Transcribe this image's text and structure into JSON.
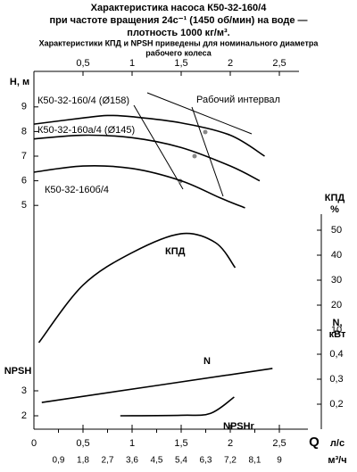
{
  "title": [
    "Характеристика насоса К50-32-160/4",
    "при частоте вращения 24с⁻¹ (1450 об/мин) на воде —",
    "плотность 1000 кг/м³."
  ],
  "subtitle": [
    "Характеристики КПД и NPSH приведены для номинального диаметра",
    "рабочего колеса"
  ],
  "chart_data": [
    {
      "type": "line",
      "y_label": "Н, м",
      "annotation": "Рабочий интервал",
      "xlim": [
        0,
        2.7
      ],
      "xticks": [
        {
          "value": 0.5,
          "label": "0,5"
        },
        1,
        {
          "value": 1.5,
          "label": "1,5"
        },
        2,
        {
          "value": 2.5,
          "label": "2,5"
        }
      ],
      "ylim": [
        4.5,
        9.5
      ],
      "yticks": [
        5,
        6,
        7,
        8,
        9
      ],
      "series": [
        {
          "name": "К50-32-160/4 (Ø158)",
          "color": "#000000",
          "x": [
            0,
            0.5,
            0.75,
            1.0,
            1.5,
            2.0,
            2.35
          ],
          "values": [
            8.3,
            8.55,
            8.65,
            8.6,
            8.35,
            7.85,
            7.0
          ]
        },
        {
          "name": "К50-32-160а/4 (Ø145)",
          "color": "#000000",
          "x": [
            0,
            0.5,
            1.0,
            1.5,
            2.0,
            2.3
          ],
          "values": [
            7.7,
            7.85,
            7.75,
            7.35,
            6.6,
            6.0
          ]
        },
        {
          "name": "К50-32-160б/4",
          "color": "#000000",
          "x": [
            0,
            0.5,
            1.0,
            1.5,
            1.9,
            2.15
          ],
          "values": [
            6.35,
            6.6,
            6.5,
            6.0,
            5.3,
            4.9
          ]
        }
      ]
    },
    {
      "type": "line",
      "y_label": [
        "КПД",
        "%"
      ],
      "xlim": [
        0,
        2.7
      ],
      "ylim": [
        5,
        55
      ],
      "yticks": [
        10,
        20,
        30,
        40,
        50
      ],
      "series": [
        {
          "name": "КПД",
          "color": "#000000",
          "x": [
            0.05,
            0.5,
            1.0,
            1.5,
            1.85,
            2.05
          ],
          "values": [
            5,
            28,
            41,
            48.6,
            45,
            35
          ]
        }
      ]
    },
    {
      "type": "line",
      "y_label": [
        "N,",
        "кВт"
      ],
      "xlim": [
        0,
        2.7
      ],
      "ylim": [
        0.15,
        0.45
      ],
      "yticks": [
        {
          "value": 0.2,
          "label": "0,2"
        },
        {
          "value": 0.3,
          "label": "0,3"
        },
        {
          "value": 0.4,
          "label": "0,4"
        }
      ],
      "series": [
        {
          "name": "N",
          "color": "#000000",
          "x": [
            0.08,
            2.43
          ],
          "values": [
            0.207,
            0.343
          ]
        }
      ]
    },
    {
      "type": "line",
      "y_label": "NPSH",
      "x_label": "Q",
      "x_units": [
        "л/с",
        "м³/ч"
      ],
      "xlim": [
        0,
        2.7
      ],
      "xticks": [
        0,
        {
          "value": 0.5,
          "label": "0,5"
        },
        1,
        {
          "value": 1.5,
          "label": "1,5"
        },
        2,
        {
          "value": 2.5,
          "label": "2,5"
        }
      ],
      "x2lim": [
        0,
        9.72
      ],
      "x2ticks": [
        {
          "value": 0.9,
          "label": "0,9"
        },
        {
          "value": 1.8,
          "label": "1,8"
        },
        {
          "value": 2.7,
          "label": "2,7"
        },
        {
          "value": 3.6,
          "label": "3,6"
        },
        {
          "value": 4.5,
          "label": "4,5"
        },
        {
          "value": 5.4,
          "label": "5,4"
        },
        {
          "value": 6.3,
          "label": "6,3"
        },
        {
          "value": 7.2,
          "label": "7,2"
        },
        {
          "value": 8.1,
          "label": "8,1"
        },
        9
      ],
      "ylim": [
        1.5,
        3.5
      ],
      "yticks": [
        2,
        3
      ],
      "series": [
        {
          "name": "NPSHr",
          "color": "#000000",
          "x": [
            0.88,
            1.5,
            1.8,
            2.04
          ],
          "values": [
            2.0,
            2.02,
            2.1,
            2.75
          ]
        }
      ]
    }
  ]
}
